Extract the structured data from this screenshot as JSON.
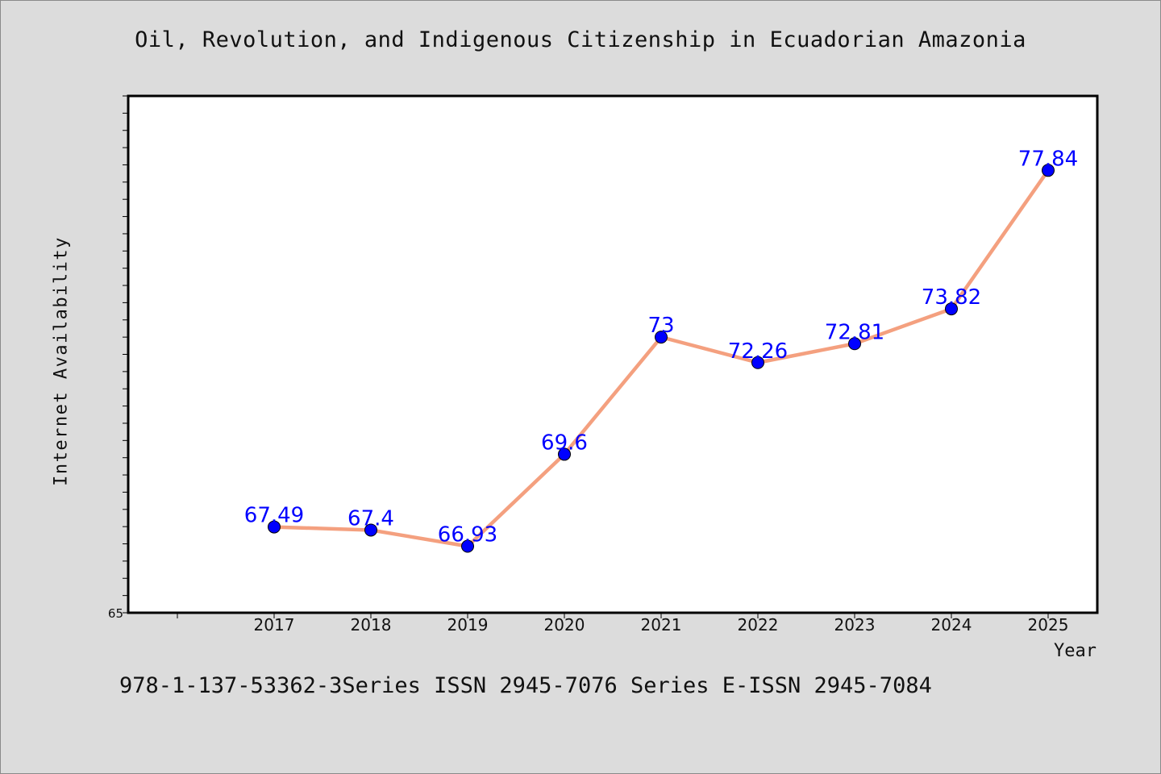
{
  "chart_data": {
    "type": "line",
    "title": "Oil, Revolution, and Indigenous Citizenship in Ecuadorian Amazonia",
    "xlabel": "Year",
    "ylabel": "Internet Availability",
    "x": [
      "2017",
      "2018",
      "2019",
      "2020",
      "2021",
      "2022",
      "2023",
      "2024",
      "2025"
    ],
    "series": [
      {
        "values": [
          67.49,
          67.4,
          66.93,
          69.6,
          73,
          72.26,
          72.81,
          73.82,
          77.84
        ]
      }
    ],
    "data_labels": [
      "67.49",
      "67.4",
      "66.93",
      "69.6",
      "73",
      "72.26",
      "72.81",
      "73.82",
      "77.84"
    ],
    "y_tick_labels": [
      "65"
    ],
    "ylim": [
      65,
      80
    ],
    "grid": false,
    "line_color": "#f4a07f",
    "marker_color": "#0000ff",
    "label_color": "#0000ff"
  },
  "footer": "978-1-137-53362-3Series ISSN 2945-7076 Series E-ISSN 2945-7084"
}
